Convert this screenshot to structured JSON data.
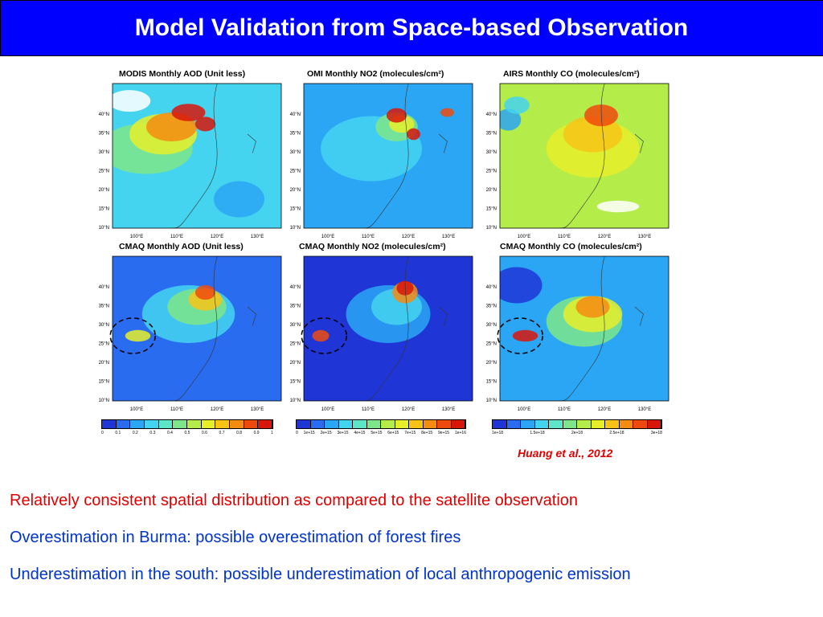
{
  "title": "Model Validation from Space-based Observation",
  "panels": [
    {
      "title": "MODIS Monthly AOD (Unit less)",
      "variable": "aod",
      "source": "obs"
    },
    {
      "title": "OMI Monthly NO2 (molecules/cm²)",
      "variable": "no2",
      "source": "obs"
    },
    {
      "title": "AIRS Monthly CO (molecules/cm²)",
      "variable": "co",
      "source": "obs"
    },
    {
      "title": "CMAQ Monthly AOD (Unit less)",
      "variable": "aod",
      "source": "model"
    },
    {
      "title": "CMAQ Monthly NO2 (molecules/cm²)",
      "variable": "no2",
      "source": "model"
    },
    {
      "title": "CMAQ Monthly CO (molecules/cm²)",
      "variable": "co",
      "source": "model"
    }
  ],
  "lat_labels": [
    "40°N",
    "35°N",
    "30°N",
    "25°N",
    "20°N",
    "15°N",
    "10°N"
  ],
  "lon_labels": [
    "100°E",
    "110°E",
    "120°E",
    "130°E"
  ],
  "colorbars": [
    {
      "ticks": [
        "0",
        "0.1",
        "0.2",
        "0.3",
        "0.4",
        "0.5",
        "0.6",
        "0.7",
        "0.8",
        "0.9",
        "1"
      ],
      "colors": [
        "#1f35d6",
        "#2a6cf0",
        "#2aa6f5",
        "#44d4f0",
        "#5ee6c8",
        "#7ee68a",
        "#b4ec4a",
        "#e6ee2a",
        "#f7c416",
        "#f58c12",
        "#ef4a0e",
        "#d9160a"
      ]
    },
    {
      "ticks": [
        "0",
        "1e+15",
        "2e+15",
        "3e+15",
        "4e+15",
        "5e+15",
        "6e+15",
        "7e+15",
        "8e+15",
        "9e+15",
        "1e+16"
      ],
      "colors": [
        "#1f35d6",
        "#2a6cf0",
        "#2aa6f5",
        "#44d4f0",
        "#5ee6c8",
        "#7ee68a",
        "#b4ec4a",
        "#e6ee2a",
        "#f7c416",
        "#f58c12",
        "#ef4a0e",
        "#d9160a"
      ]
    },
    {
      "ticks": [
        "1e+18",
        "1.5e+18",
        "2e+18",
        "2.5e+18",
        "3e+18"
      ],
      "colors": [
        "#1f35d6",
        "#2a6cf0",
        "#2aa6f5",
        "#44d4f0",
        "#5ee6c8",
        "#7ee68a",
        "#b4ec4a",
        "#e6ee2a",
        "#f7c416",
        "#f58c12",
        "#ef4a0e",
        "#d9160a"
      ]
    }
  ],
  "citation": "Huang et al., 2012",
  "bullets": [
    "Relatively consistent spatial distribution as compared to the satellite observation",
    "Overestimation in Burma: possible overestimation of forest fires",
    "Underestimation in the south: possible underestimation of local anthropogenic emission"
  ],
  "colors": {
    "title_bg": "#0000ff",
    "bullet_red": "#e00000",
    "bullet_blue": "#0033cc"
  }
}
